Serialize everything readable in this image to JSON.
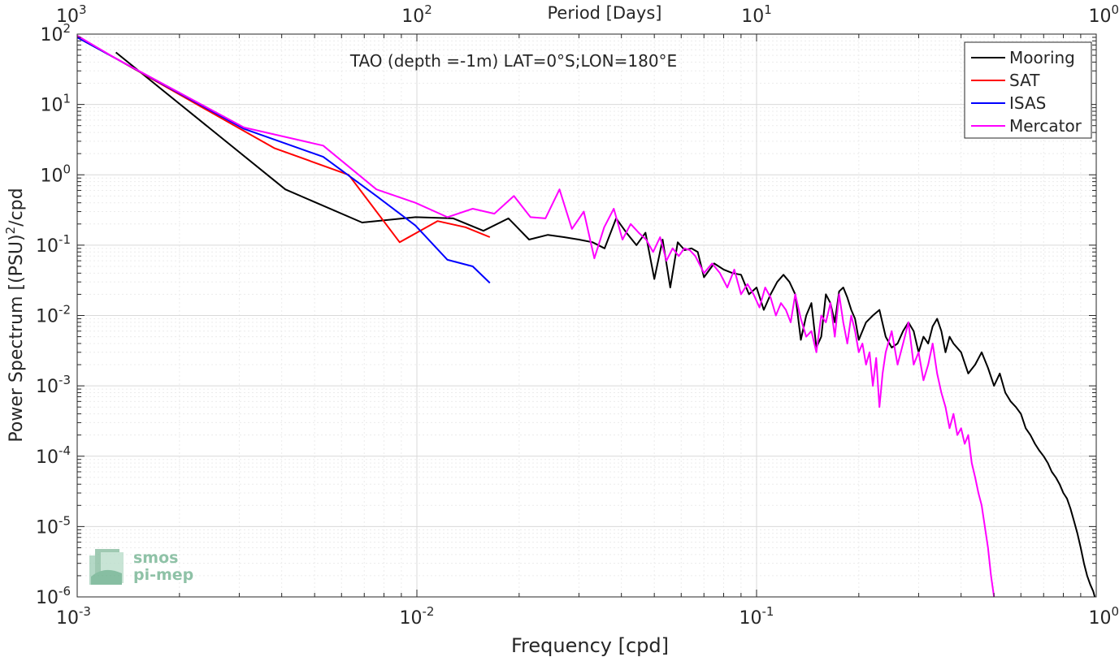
{
  "chart_data": {
    "type": "line",
    "title": "TAO (depth =-1m) LAT=0°S;LON=180°E",
    "xlabel": "Frequency [cpd]",
    "ylabel": "Power Spectrum [(PSU)",
    "ylabel_sup": "2",
    "ylabel_suffix": "/cpd",
    "top_xlabel": "Period [Days]",
    "x_scale": "log",
    "y_scale": "log",
    "xlim": [
      0.001,
      1
    ],
    "ylim": [
      1e-06,
      100
    ],
    "grid": true,
    "legend_position": "top-right",
    "x_ticks": [
      {
        "base": "10",
        "exp": "-3",
        "value": 0.001
      },
      {
        "base": "10",
        "exp": "-2",
        "value": 0.01
      },
      {
        "base": "10",
        "exp": "-1",
        "value": 0.1
      },
      {
        "base": "10",
        "exp": "0",
        "value": 1
      }
    ],
    "y_ticks": [
      {
        "base": "10",
        "exp": "2",
        "value": 100
      },
      {
        "base": "10",
        "exp": "1",
        "value": 10
      },
      {
        "base": "10",
        "exp": "0",
        "value": 1
      },
      {
        "base": "10",
        "exp": "-1",
        "value": 0.1
      },
      {
        "base": "10",
        "exp": "-2",
        "value": 0.01
      },
      {
        "base": "10",
        "exp": "-3",
        "value": 0.001
      },
      {
        "base": "10",
        "exp": "-4",
        "value": 0.0001
      },
      {
        "base": "10",
        "exp": "-5",
        "value": 1e-05
      },
      {
        "base": "10",
        "exp": "-6",
        "value": 1e-06
      }
    ],
    "top_ticks": [
      {
        "base": "10",
        "exp": "3",
        "value": 0.001
      },
      {
        "base": "10",
        "exp": "2",
        "value": 0.01
      },
      {
        "base": "10",
        "exp": "1",
        "value": 0.1
      },
      {
        "base": "10",
        "exp": "0",
        "value": 1
      }
    ],
    "series": [
      {
        "name": "Mooring",
        "color": "#000000",
        "points": [
          [
            0.0013,
            55
          ],
          [
            0.0041,
            0.62
          ],
          [
            0.0069,
            0.21
          ],
          [
            0.0099,
            0.25
          ],
          [
            0.0128,
            0.24
          ],
          [
            0.0157,
            0.16
          ],
          [
            0.0186,
            0.24
          ],
          [
            0.0214,
            0.12
          ],
          [
            0.0243,
            0.14
          ],
          [
            0.0271,
            0.13
          ],
          [
            0.03,
            0.12
          ],
          [
            0.0329,
            0.11
          ],
          [
            0.0357,
            0.09
          ],
          [
            0.0386,
            0.24
          ],
          [
            0.0414,
            0.15
          ],
          [
            0.0443,
            0.1
          ],
          [
            0.0471,
            0.15
          ],
          [
            0.05,
            0.033
          ],
          [
            0.0529,
            0.12
          ],
          [
            0.0557,
            0.025
          ],
          [
            0.0586,
            0.11
          ],
          [
            0.0614,
            0.085
          ],
          [
            0.0643,
            0.09
          ],
          [
            0.0671,
            0.08
          ],
          [
            0.07,
            0.035
          ],
          [
            0.075,
            0.055
          ],
          [
            0.08,
            0.045
          ],
          [
            0.085,
            0.04
          ],
          [
            0.09,
            0.038
          ],
          [
            0.095,
            0.02
          ],
          [
            0.1,
            0.025
          ],
          [
            0.105,
            0.012
          ],
          [
            0.11,
            0.02
          ],
          [
            0.115,
            0.03
          ],
          [
            0.12,
            0.038
          ],
          [
            0.125,
            0.03
          ],
          [
            0.13,
            0.02
          ],
          [
            0.135,
            0.0045
          ],
          [
            0.14,
            0.01
          ],
          [
            0.145,
            0.015
          ],
          [
            0.15,
            0.0035
          ],
          [
            0.155,
            0.005
          ],
          [
            0.16,
            0.02
          ],
          [
            0.165,
            0.015
          ],
          [
            0.17,
            0.008
          ],
          [
            0.175,
            0.022
          ],
          [
            0.18,
            0.025
          ],
          [
            0.185,
            0.018
          ],
          [
            0.19,
            0.012
          ],
          [
            0.195,
            0.009
          ],
          [
            0.2,
            0.0045
          ],
          [
            0.21,
            0.008
          ],
          [
            0.22,
            0.01
          ],
          [
            0.23,
            0.012
          ],
          [
            0.24,
            0.005
          ],
          [
            0.25,
            0.0035
          ],
          [
            0.26,
            0.004
          ],
          [
            0.27,
            0.006
          ],
          [
            0.28,
            0.008
          ],
          [
            0.29,
            0.006
          ],
          [
            0.3,
            0.003
          ],
          [
            0.31,
            0.005
          ],
          [
            0.32,
            0.004
          ],
          [
            0.33,
            0.007
          ],
          [
            0.34,
            0.009
          ],
          [
            0.35,
            0.006
          ],
          [
            0.36,
            0.003
          ],
          [
            0.37,
            0.005
          ],
          [
            0.38,
            0.004
          ],
          [
            0.4,
            0.003
          ],
          [
            0.42,
            0.0015
          ],
          [
            0.44,
            0.002
          ],
          [
            0.46,
            0.003
          ],
          [
            0.48,
            0.0018
          ],
          [
            0.5,
            0.001
          ],
          [
            0.52,
            0.0015
          ],
          [
            0.54,
            0.0008
          ],
          [
            0.56,
            0.0006
          ],
          [
            0.58,
            0.0005
          ],
          [
            0.6,
            0.0004
          ],
          [
            0.62,
            0.00025
          ],
          [
            0.64,
            0.0002
          ],
          [
            0.66,
            0.00015
          ],
          [
            0.68,
            0.00012
          ],
          [
            0.7,
            0.0001
          ],
          [
            0.72,
            8e-05
          ],
          [
            0.74,
            6e-05
          ],
          [
            0.76,
            5e-05
          ],
          [
            0.78,
            4e-05
          ],
          [
            0.8,
            3e-05
          ],
          [
            0.82,
            2.5e-05
          ],
          [
            0.84,
            1.8e-05
          ],
          [
            0.86,
            1.2e-05
          ],
          [
            0.88,
            8e-06
          ],
          [
            0.9,
            5e-06
          ],
          [
            0.92,
            3e-06
          ],
          [
            0.94,
            2e-06
          ],
          [
            0.96,
            1.5e-06
          ],
          [
            0.98,
            1.2e-06
          ],
          [
            0.99,
            1e-06
          ]
        ]
      },
      {
        "name": "SAT",
        "color": "#ff0000",
        "points": [
          [
            0.001,
            90
          ],
          [
            0.0013,
            45
          ],
          [
            0.0038,
            2.4
          ],
          [
            0.0063,
            1.0
          ],
          [
            0.0089,
            0.11
          ],
          [
            0.0115,
            0.22
          ],
          [
            0.0139,
            0.18
          ],
          [
            0.0164,
            0.13
          ]
        ]
      },
      {
        "name": "ISAS",
        "color": "#0000ff",
        "points": [
          [
            0.001,
            90
          ],
          [
            0.0013,
            45
          ],
          [
            0.0031,
            4.5
          ],
          [
            0.0053,
            1.8
          ],
          [
            0.0076,
            0.5
          ],
          [
            0.0099,
            0.19
          ],
          [
            0.0123,
            0.062
          ],
          [
            0.0146,
            0.05
          ],
          [
            0.0164,
            0.029
          ]
        ]
      },
      {
        "name": "Mercator",
        "color": "#ff00ff",
        "points": [
          [
            0.001,
            95
          ],
          [
            0.0013,
            45
          ],
          [
            0.0031,
            4.7
          ],
          [
            0.0053,
            2.6
          ],
          [
            0.0076,
            0.62
          ],
          [
            0.0099,
            0.4
          ],
          [
            0.0123,
            0.25
          ],
          [
            0.0146,
            0.33
          ],
          [
            0.0169,
            0.28
          ],
          [
            0.0193,
            0.5
          ],
          [
            0.0216,
            0.25
          ],
          [
            0.0239,
            0.24
          ],
          [
            0.0263,
            0.62
          ],
          [
            0.0286,
            0.17
          ],
          [
            0.031,
            0.3
          ],
          [
            0.0333,
            0.065
          ],
          [
            0.0356,
            0.18
          ],
          [
            0.038,
            0.33
          ],
          [
            0.0403,
            0.12
          ],
          [
            0.0426,
            0.2
          ],
          [
            0.045,
            0.15
          ],
          [
            0.0473,
            0.12
          ],
          [
            0.0496,
            0.08
          ],
          [
            0.052,
            0.13
          ],
          [
            0.0543,
            0.06
          ],
          [
            0.0566,
            0.09
          ],
          [
            0.059,
            0.07
          ],
          [
            0.0613,
            0.09
          ],
          [
            0.0636,
            0.085
          ],
          [
            0.066,
            0.07
          ],
          [
            0.07,
            0.04
          ],
          [
            0.074,
            0.055
          ],
          [
            0.078,
            0.04
          ],
          [
            0.082,
            0.025
          ],
          [
            0.086,
            0.045
          ],
          [
            0.09,
            0.02
          ],
          [
            0.094,
            0.028
          ],
          [
            0.098,
            0.02
          ],
          [
            0.102,
            0.013
          ],
          [
            0.106,
            0.025
          ],
          [
            0.11,
            0.018
          ],
          [
            0.114,
            0.01
          ],
          [
            0.118,
            0.015
          ],
          [
            0.122,
            0.012
          ],
          [
            0.126,
            0.008
          ],
          [
            0.13,
            0.02
          ],
          [
            0.135,
            0.009
          ],
          [
            0.14,
            0.005
          ],
          [
            0.145,
            0.006
          ],
          [
            0.15,
            0.003
          ],
          [
            0.155,
            0.01
          ],
          [
            0.16,
            0.008
          ],
          [
            0.165,
            0.015
          ],
          [
            0.17,
            0.005
          ],
          [
            0.175,
            0.02
          ],
          [
            0.18,
            0.008
          ],
          [
            0.185,
            0.004
          ],
          [
            0.19,
            0.01
          ],
          [
            0.195,
            0.006
          ],
          [
            0.2,
            0.003
          ],
          [
            0.205,
            0.004
          ],
          [
            0.21,
            0.002
          ],
          [
            0.215,
            0.003
          ],
          [
            0.22,
            0.001
          ],
          [
            0.225,
            0.0025
          ],
          [
            0.23,
            0.0005
          ],
          [
            0.235,
            0.0015
          ],
          [
            0.24,
            0.003
          ],
          [
            0.25,
            0.006
          ],
          [
            0.26,
            0.002
          ],
          [
            0.27,
            0.004
          ],
          [
            0.28,
            0.008
          ],
          [
            0.29,
            0.002
          ],
          [
            0.3,
            0.003
          ],
          [
            0.31,
            0.0012
          ],
          [
            0.32,
            0.002
          ],
          [
            0.33,
            0.004
          ],
          [
            0.34,
            0.0015
          ],
          [
            0.35,
            0.0008
          ],
          [
            0.36,
            0.0005
          ],
          [
            0.37,
            0.00025
          ],
          [
            0.38,
            0.0004
          ],
          [
            0.39,
            0.0002
          ],
          [
            0.4,
            0.00025
          ],
          [
            0.41,
            0.00015
          ],
          [
            0.42,
            0.0002
          ],
          [
            0.43,
            8e-05
          ],
          [
            0.44,
            5e-05
          ],
          [
            0.45,
            3e-05
          ],
          [
            0.46,
            2e-05
          ],
          [
            0.47,
            1e-05
          ],
          [
            0.48,
            5e-06
          ],
          [
            0.49,
            2e-06
          ],
          [
            0.5,
            1e-06
          ]
        ]
      }
    ]
  },
  "logo": {
    "line1": "smos",
    "line2": "pi-mep"
  }
}
